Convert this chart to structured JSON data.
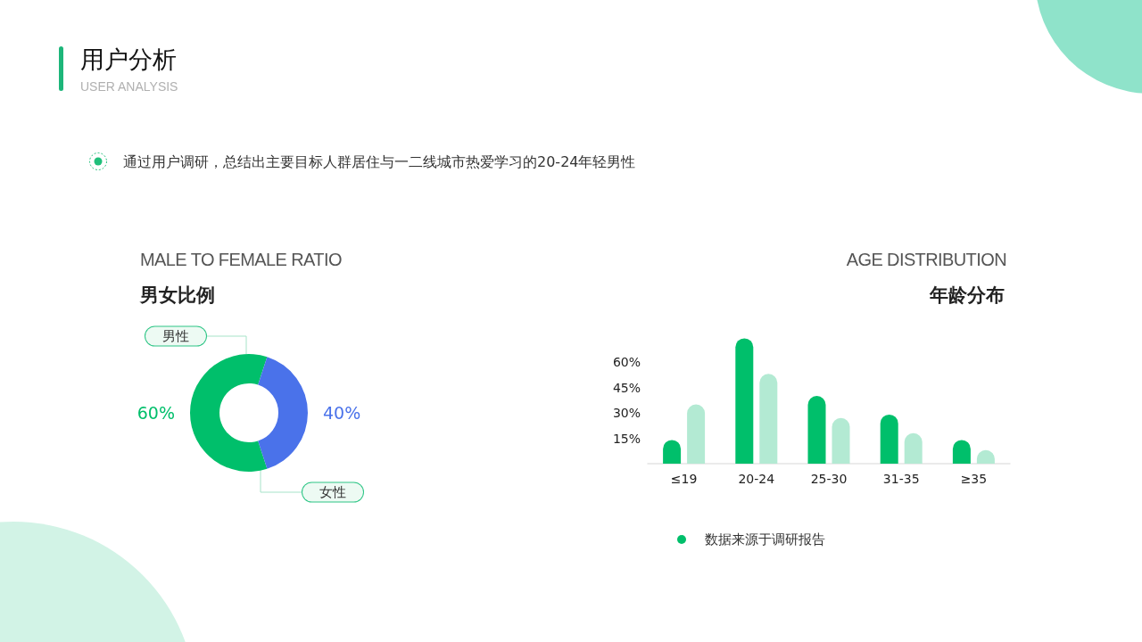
{
  "chart_data": [
    {
      "type": "other",
      "title": "用户分析",
      "subtitle": "USER ANALYSIS",
      "annotations": [
        "通过用户调研，总结出主要目标人群居住与一二线城市热爱学习的20-24年轻男性"
      ]
    },
    {
      "type": "donut",
      "title": "男女比例",
      "subtitle": "MALE TO FEMALE RATIO",
      "categories": [
        "男性",
        "女性"
      ],
      "values": [
        60,
        40
      ],
      "colors": [
        "#00bf6b",
        "#4a72ea"
      ],
      "value_labels": [
        "60%",
        "40%"
      ]
    },
    {
      "type": "bar",
      "title": "年龄分布",
      "subtitle": "AGE DISTRIBUTION",
      "categories": [
        "≤19",
        "20-24",
        "25-30",
        "31-35",
        "≥35"
      ],
      "series": [
        {
          "color": "#00bf6b",
          "values": [
            14,
            74,
            40,
            29,
            14
          ]
        },
        {
          "color": "#b3ead3",
          "values": [
            35,
            53,
            27,
            18,
            8
          ]
        }
      ],
      "ylim": [
        0,
        75
      ],
      "yticks": [
        {
          "value": 15,
          "label": "15%"
        },
        {
          "value": 30,
          "label": "30%"
        },
        {
          "value": 45,
          "label": "45%"
        },
        {
          "value": 60,
          "label": "60%"
        }
      ],
      "annotations": [
        "数据来源于调研报告"
      ]
    }
  ]
}
